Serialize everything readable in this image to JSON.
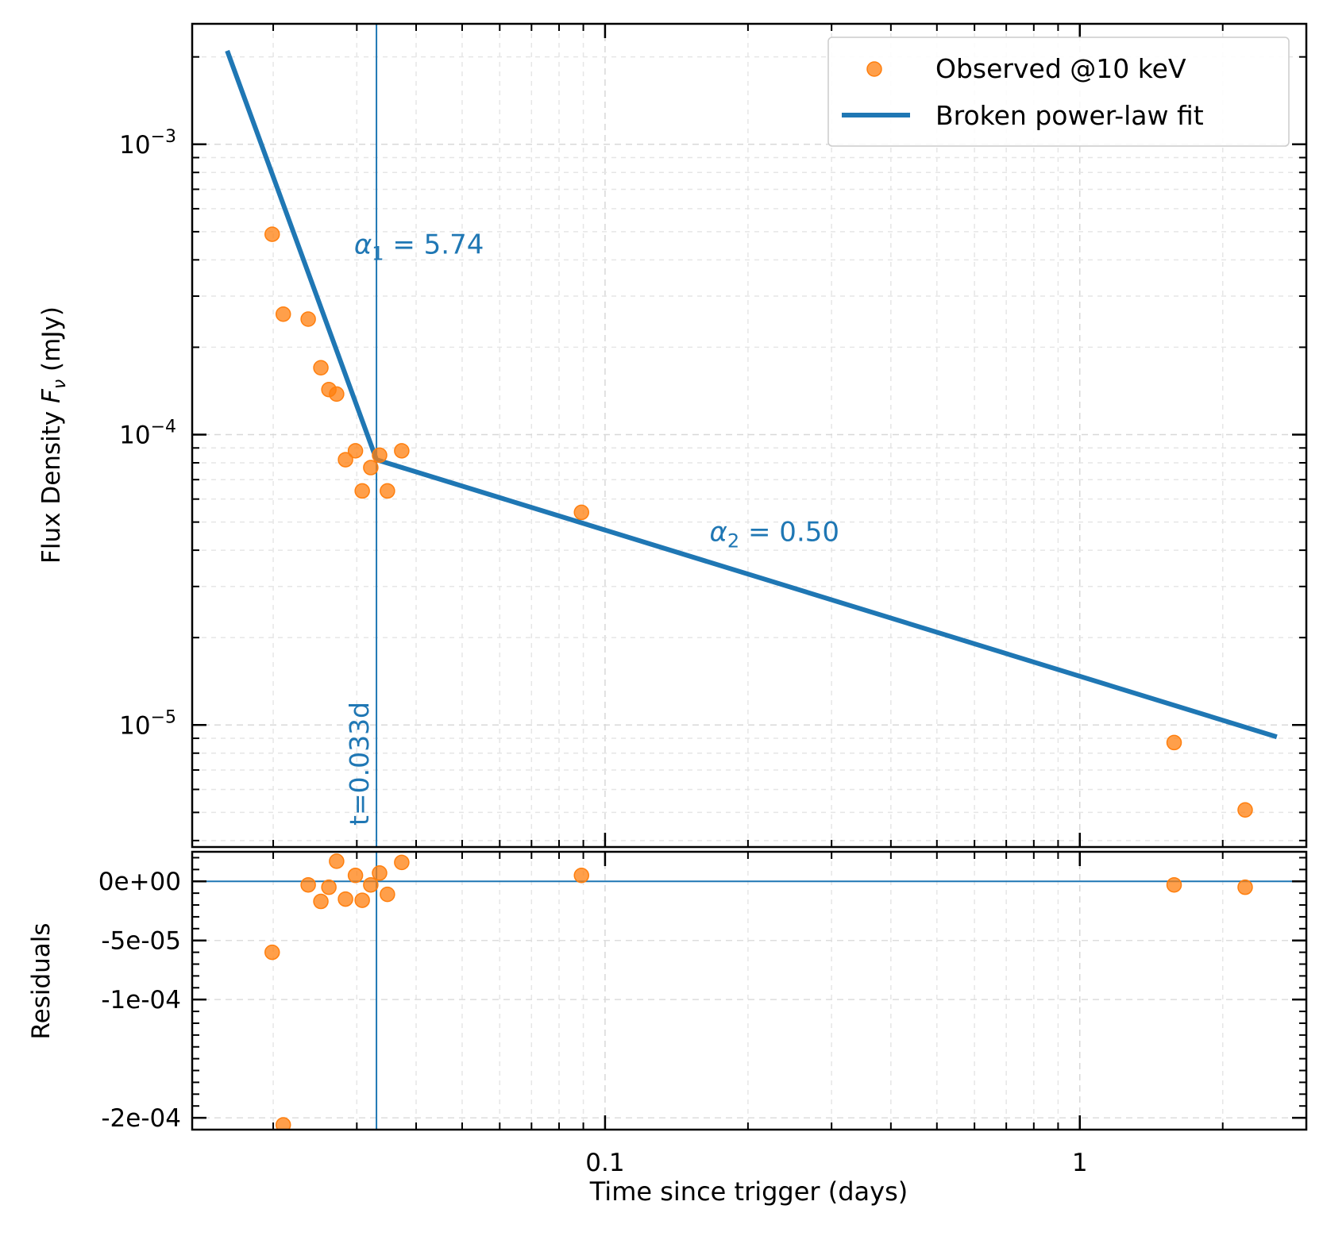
{
  "chart_data": {
    "type": "scatter",
    "xlabel": "Time since trigger (days)",
    "x_scale": "log",
    "xlim": [
      0.0135,
      3.0
    ],
    "xticks": [
      {
        "value": 0.1,
        "label": "0.1"
      },
      {
        "value": 1,
        "label": "1"
      }
    ],
    "grid": true,
    "legend": {
      "placement": "top-right",
      "entries": [
        {
          "label": "Observed @10 keV",
          "marker": "circle",
          "color": "#ff7f0e"
        },
        {
          "label": "Broken power-law fit",
          "marker": "line",
          "color": "#1f77b4"
        }
      ]
    },
    "colors": {
      "observed": "#ff7f0e",
      "fit": "#1f77b4",
      "break_line": "#1f77b4",
      "residual_zero": "#1f77b4"
    },
    "main_panel": {
      "ylabel_prefix": "Flux Density ",
      "ylabel_symbol": "F",
      "ylabel_subscript": "ν",
      "ylabel_suffix": " (mJy)",
      "y_scale": "log",
      "ylim": [
        3.8e-06,
        0.0026
      ],
      "yticks": [
        {
          "value": 0.001,
          "base": "10",
          "exp": "−3"
        },
        {
          "value": 0.0001,
          "base": "10",
          "exp": "−4"
        },
        {
          "value": 1e-05,
          "base": "10",
          "exp": "−5"
        }
      ],
      "observed": [
        {
          "x": 0.0199,
          "y": 0.00049
        },
        {
          "x": 0.021,
          "y": 0.00026
        },
        {
          "x": 0.0237,
          "y": 0.00025
        },
        {
          "x": 0.0252,
          "y": 0.00017
        },
        {
          "x": 0.0262,
          "y": 0.000143
        },
        {
          "x": 0.0272,
          "y": 0.000138
        },
        {
          "x": 0.0284,
          "y": 8.2e-05
        },
        {
          "x": 0.0298,
          "y": 8.8e-05
        },
        {
          "x": 0.0308,
          "y": 6.4e-05
        },
        {
          "x": 0.0321,
          "y": 7.7e-05
        },
        {
          "x": 0.0335,
          "y": 8.5e-05
        },
        {
          "x": 0.0348,
          "y": 6.4e-05
        },
        {
          "x": 0.0373,
          "y": 8.8e-05
        },
        {
          "x": 0.0892,
          "y": 5.4e-05
        },
        {
          "x": 1.58,
          "y": 8.7e-06
        },
        {
          "x": 2.23,
          "y": 5.1e-06
        }
      ],
      "fit": {
        "name": "Broken power-law fit",
        "x": [
          0.016,
          0.033,
          2.6
        ],
        "y": [
          0.0021,
          8.2e-05,
          9.1e-06
        ]
      },
      "break": {
        "x": 0.033,
        "label": "t=0.033d"
      },
      "annotations": [
        {
          "sym": "α",
          "sub": "1",
          "rest": " = 5.74",
          "x": 0.0296,
          "y": 0.00042
        },
        {
          "sym": "α",
          "sub": "2",
          "rest": " = 0.50",
          "x": 0.166,
          "y": 4.3e-05
        }
      ]
    },
    "residual_panel": {
      "ylabel": "Residuals",
      "y_scale": "linear",
      "ylim": [
        -0.00021,
        2.5e-05
      ],
      "yticks": [
        {
          "value": 0,
          "label": "0e+00"
        },
        {
          "value": -5e-05,
          "label": "-5e-05"
        },
        {
          "value": -0.0001,
          "label": "-1e-04"
        },
        {
          "value": -0.0002,
          "label": "-2e-04"
        }
      ],
      "residuals": [
        {
          "x": 0.0199,
          "y": -6e-05
        },
        {
          "x": 0.021,
          "y": -0.000206
        },
        {
          "x": 0.0237,
          "y": -3e-06
        },
        {
          "x": 0.0252,
          "y": -1.7e-05
        },
        {
          "x": 0.0262,
          "y": -5e-06
        },
        {
          "x": 0.0272,
          "y": 1.7e-05
        },
        {
          "x": 0.0284,
          "y": -1.5e-05
        },
        {
          "x": 0.0298,
          "y": 5e-06
        },
        {
          "x": 0.0308,
          "y": -1.6e-05
        },
        {
          "x": 0.0321,
          "y": -3e-06
        },
        {
          "x": 0.0335,
          "y": 7e-06
        },
        {
          "x": 0.0348,
          "y": -1.1e-05
        },
        {
          "x": 0.0373,
          "y": 1.6e-05
        },
        {
          "x": 0.0892,
          "y": 5e-06
        },
        {
          "x": 1.58,
          "y": -3e-06
        },
        {
          "x": 2.23,
          "y": -5e-06
        }
      ]
    }
  }
}
